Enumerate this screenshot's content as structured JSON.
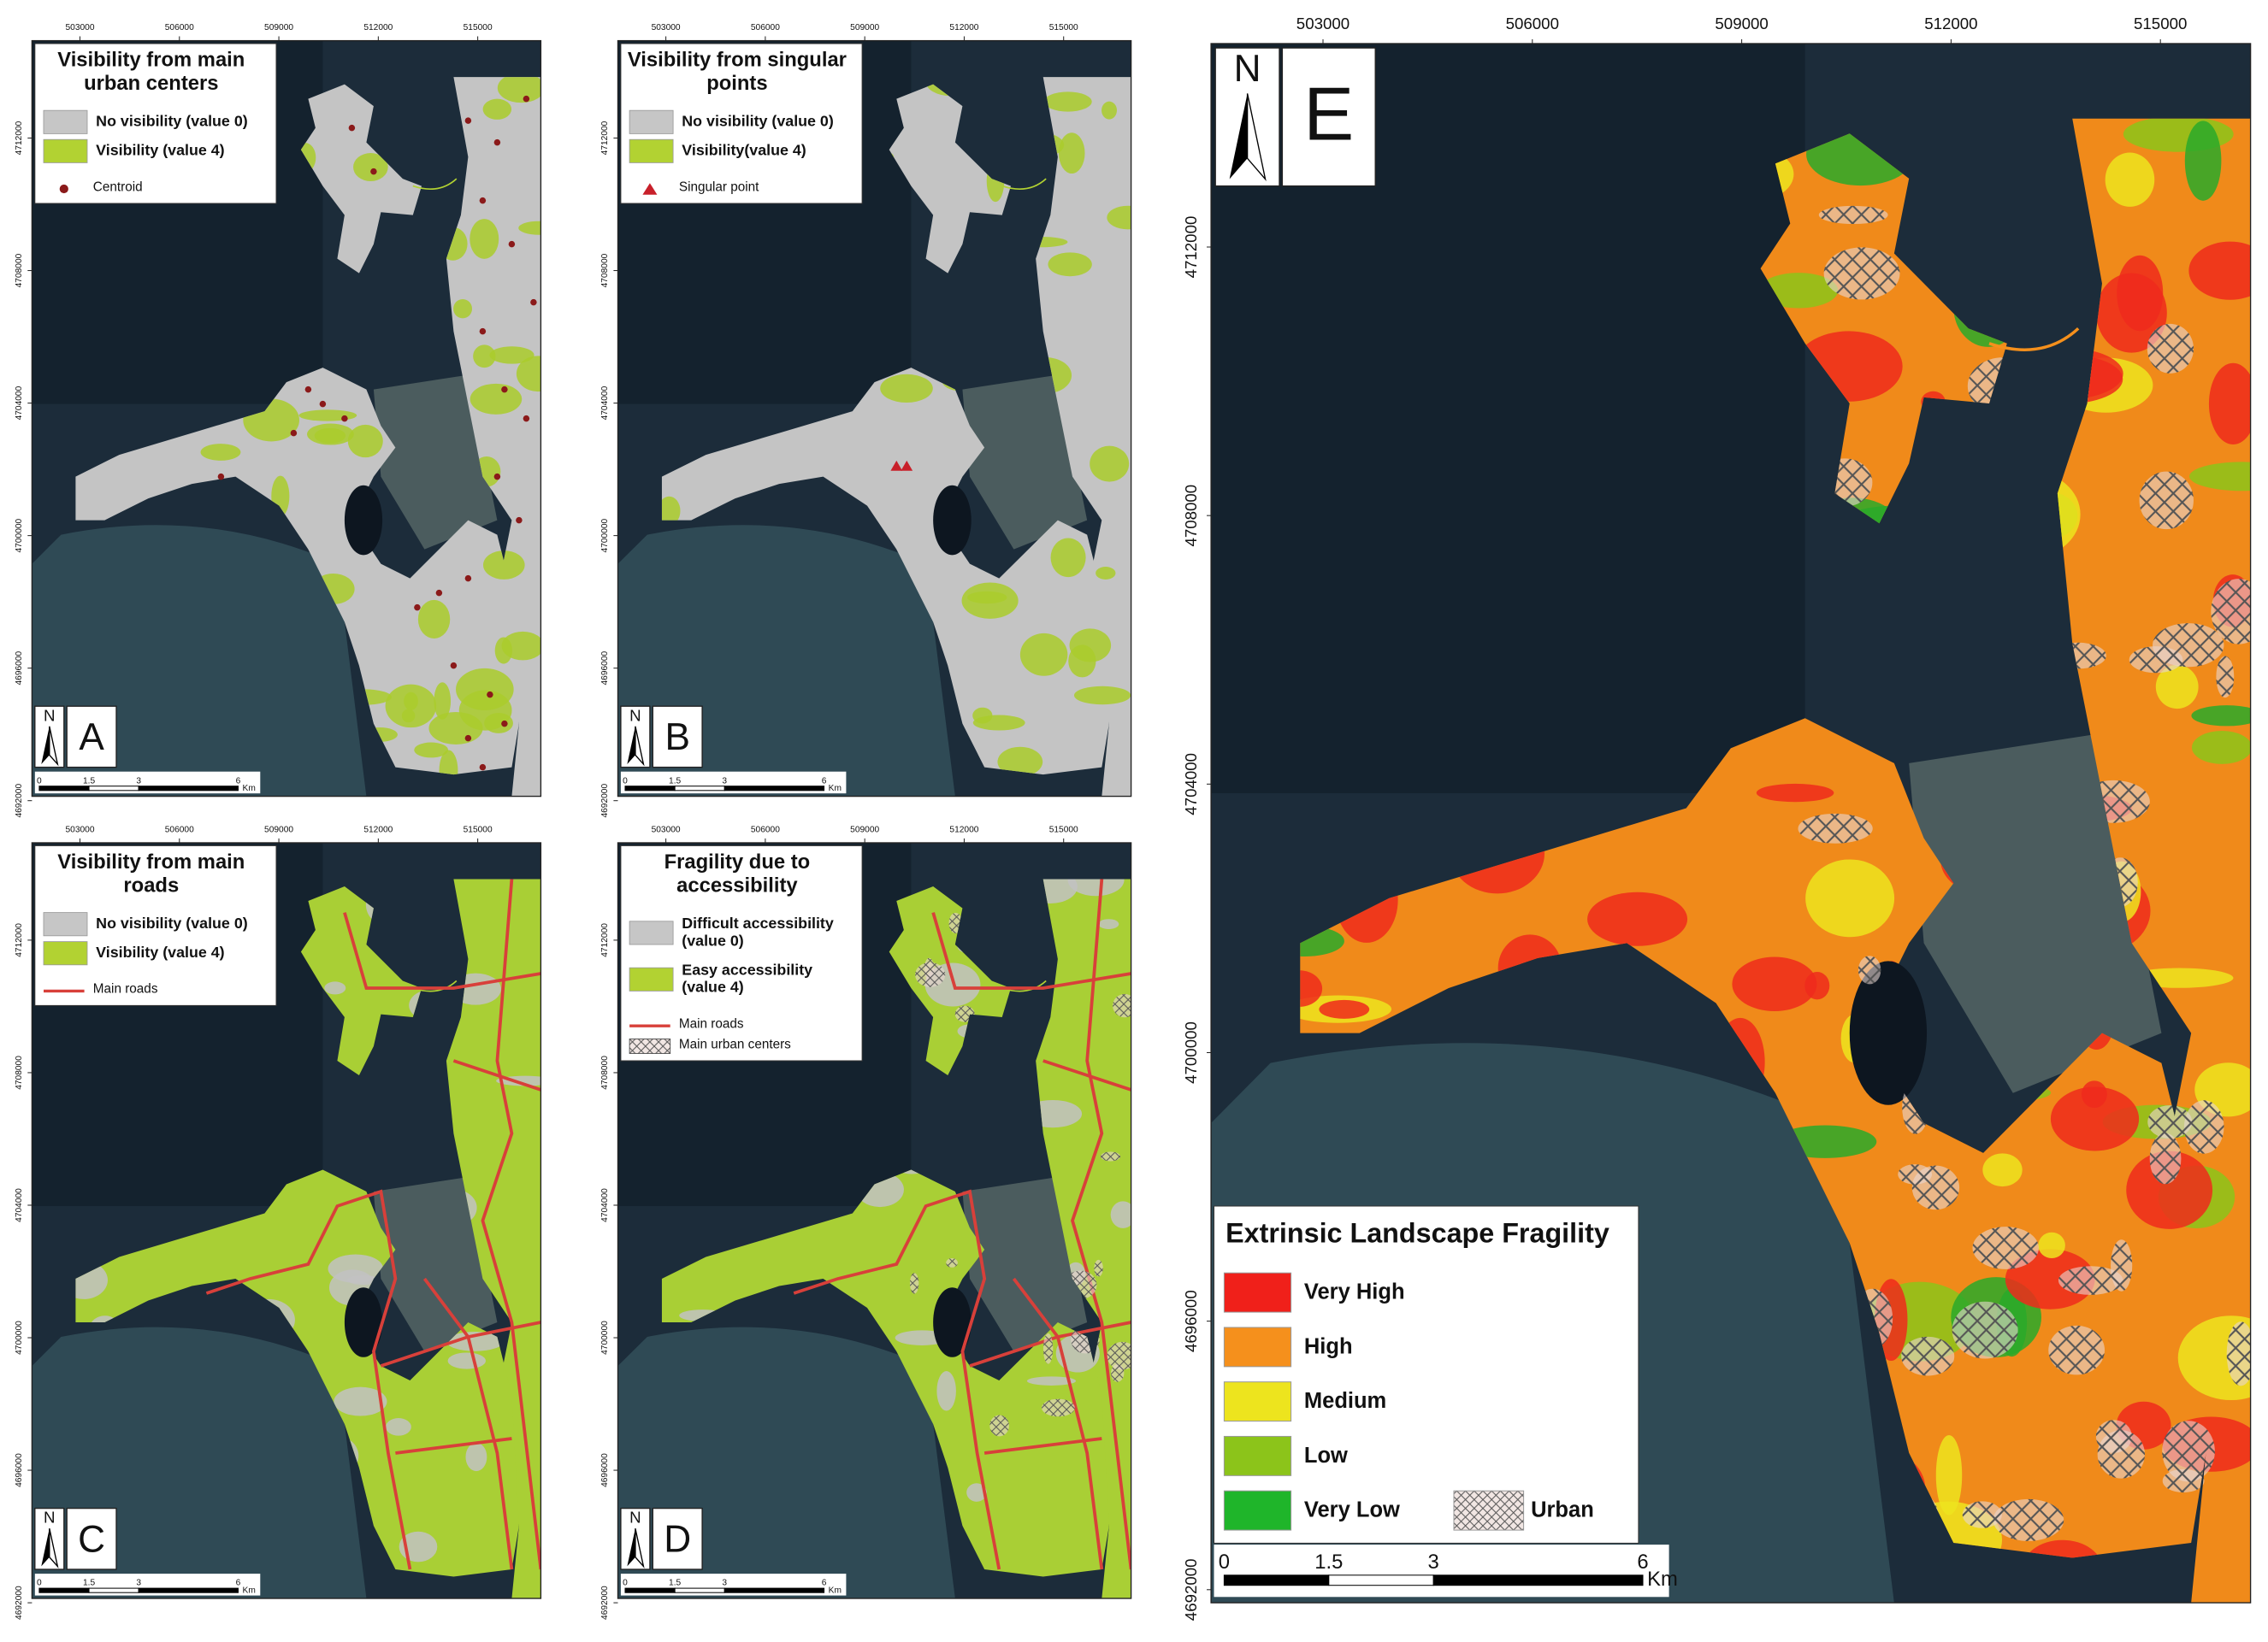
{
  "panels": [
    {
      "letter": "A",
      "title": [
        "Visibility from main",
        "urban centers"
      ],
      "legend": [
        {
          "label": [
            "No visibility (value 0)"
          ],
          "color": "#c6c6c6"
        },
        {
          "label": [
            "Visibility (value 4)"
          ],
          "color": "#b2d232"
        },
        {
          "label": [
            "Centroid"
          ],
          "symbol": "dot",
          "color": "#8b1a1a"
        }
      ]
    },
    {
      "letter": "B",
      "title": [
        "Visibility from singular",
        "points"
      ],
      "legend": [
        {
          "label": [
            "No visibility (value 0)"
          ],
          "color": "#c6c6c6"
        },
        {
          "label": [
            "Visibility(value 4)"
          ],
          "color": "#b2d232"
        },
        {
          "label": [
            "Singular point"
          ],
          "symbol": "triangle",
          "color": "#c8202a"
        }
      ]
    },
    {
      "letter": "C",
      "title": [
        "Visibility from main",
        "roads"
      ],
      "legend": [
        {
          "label": [
            "No visibility (value 0)"
          ],
          "color": "#c6c6c6"
        },
        {
          "label": [
            "Visibility (value 4)"
          ],
          "color": "#b2d232"
        },
        {
          "label": [
            "Main roads"
          ],
          "symbol": "line",
          "color": "#d8403a"
        }
      ]
    },
    {
      "letter": "D",
      "title": [
        "Fragility due to",
        "accessibility"
      ],
      "legend": [
        {
          "label": [
            "Difficult accessibility",
            "(value 0)"
          ],
          "color": "#c6c6c6"
        },
        {
          "label": [
            "Easy accessibility",
            "(value 4)"
          ],
          "color": "#b2d232"
        },
        {
          "label": [
            "Main roads"
          ],
          "symbol": "line",
          "color": "#d8403a"
        },
        {
          "label": [
            "Main urban centers"
          ],
          "symbol": "hatch",
          "color": "#444444"
        }
      ]
    },
    {
      "letter": "E",
      "title": [
        "Extrinsic Landscape Fragility"
      ],
      "legend": [
        {
          "label": [
            "Very High"
          ],
          "color": "#f0201a"
        },
        {
          "label": [
            "High"
          ],
          "color": "#f5901c"
        },
        {
          "label": [
            "Medium"
          ],
          "color": "#ede41e"
        },
        {
          "label": [
            "Low"
          ],
          "color": "#8cc41a"
        },
        {
          "label": [
            "Very Low"
          ],
          "color": "#1fb52a"
        },
        {
          "label": [
            "Urban"
          ],
          "symbol": "hatch",
          "color": "#555555"
        }
      ]
    }
  ],
  "easting_ticks": [
    503000,
    506000,
    509000,
    512000,
    515000
  ],
  "northing_ticks": [
    4712000,
    4708000,
    4704000,
    4700000,
    4696000,
    4692000
  ],
  "scale_bar": {
    "ticks": [
      0,
      1.5,
      3,
      6
    ],
    "unit": "Km"
  },
  "north": "N"
}
